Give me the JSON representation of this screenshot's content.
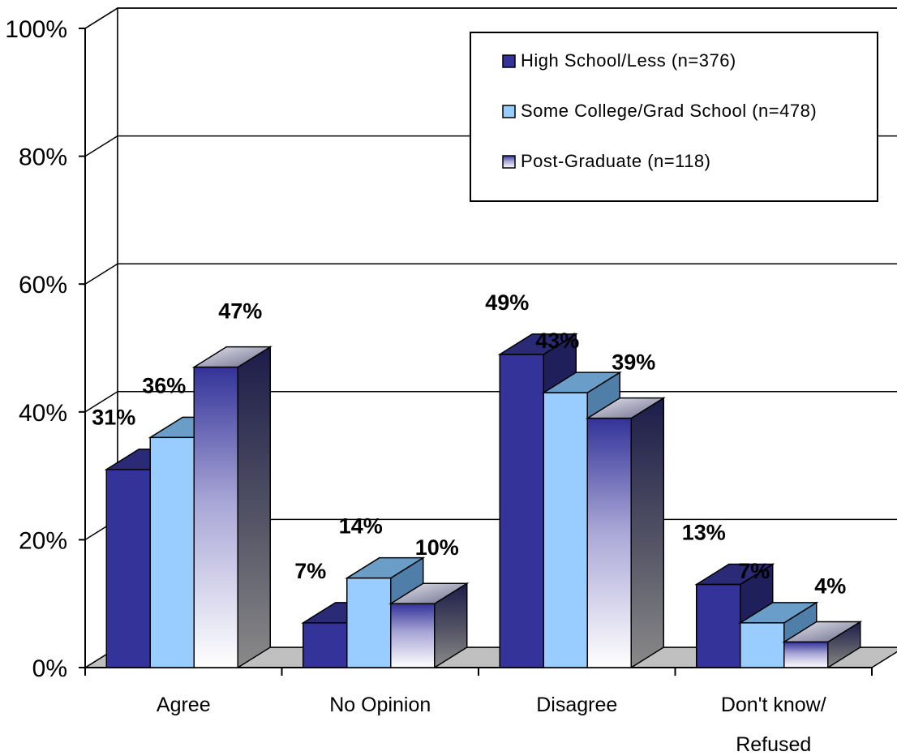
{
  "chart_data": {
    "type": "bar",
    "title": "",
    "xlabel": "",
    "ylabel": "",
    "ylim": [
      0,
      100
    ],
    "y_ticks": [
      0,
      20,
      40,
      60,
      80,
      100
    ],
    "y_tick_labels": [
      "0%",
      "20%",
      "40%",
      "60%",
      "80%",
      "100%"
    ],
    "categories": [
      [
        "Agree"
      ],
      [
        "No Opinion"
      ],
      [
        "Disagree"
      ],
      [
        "Don't know/",
        "Refused"
      ]
    ],
    "series": [
      {
        "name": "High School/Less (n=376)",
        "values": [
          31,
          7,
          49,
          13
        ],
        "labels": [
          "31%",
          "7%",
          "49%",
          "13%"
        ],
        "color": "#333399"
      },
      {
        "name": "Some College/Grad School (n=478)",
        "values": [
          36,
          14,
          43,
          7
        ],
        "labels": [
          "36%",
          "14%",
          "43%",
          "7%"
        ],
        "color": "#99ccff"
      },
      {
        "name": "Post-Graduate (n=118)",
        "values": [
          47,
          10,
          39,
          4
        ],
        "labels": [
          "47%",
          "10%",
          "39%",
          "4%"
        ],
        "color": "#333399"
      }
    ],
    "grid": true,
    "legend_position": "top-right",
    "style": "3d-clustered"
  }
}
